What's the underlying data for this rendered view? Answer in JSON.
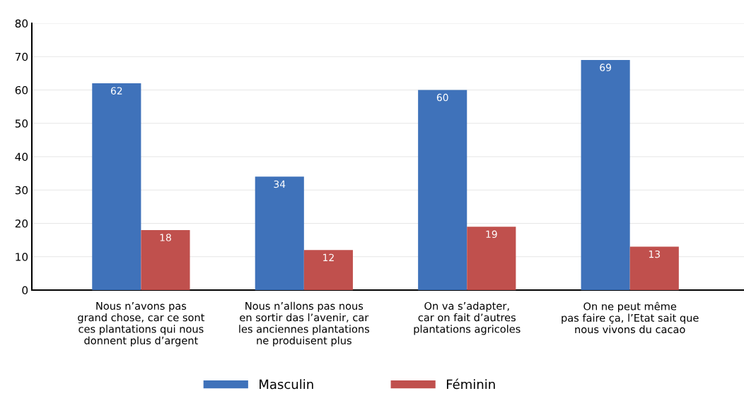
{
  "chart_data": {
    "type": "bar",
    "categories": [
      "Nous n’avons pas\ngrand chose, car ce sont\nces plantations qui nous\ndonnent plus d’argent",
      "Nous n’allons pas nous\nen sortir das l’avenir, car\nles anciennes plantations\nne produisent plus",
      "On va s’adapter,\ncar on fait d’autres\nplantations agricoles",
      "On ne peut même\npas faire ça, l’Etat sait que\nnous vivons du cacao"
    ],
    "series": [
      {
        "name": "Masculin",
        "color": "#3f72ba",
        "values": [
          62,
          34,
          60,
          69
        ]
      },
      {
        "name": "Féminin",
        "color": "#c0504d",
        "values": [
          18,
          12,
          19,
          13
        ]
      }
    ],
    "ylim": [
      0,
      80
    ],
    "yticks": [
      0,
      10,
      20,
      30,
      40,
      50,
      60,
      70,
      80
    ],
    "grid": "y",
    "legend": "bottom",
    "data_labels": true
  }
}
